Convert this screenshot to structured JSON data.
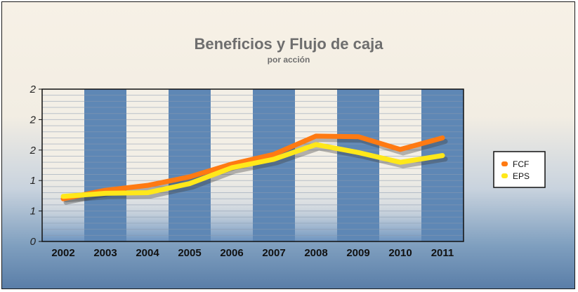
{
  "chart_data": {
    "type": "line",
    "title": "Beneficios y Flujo de caja",
    "subtitle": "por acción",
    "xlabel": "",
    "ylabel": "",
    "categories": [
      "2002",
      "2003",
      "2004",
      "2005",
      "2006",
      "2007",
      "2008",
      "2009",
      "2010",
      "2011"
    ],
    "ylim": [
      0,
      2.5
    ],
    "yticks": [
      0,
      0.5,
      1,
      1.5,
      2,
      2.5
    ],
    "ytick_labels": [
      "0",
      "1",
      "1",
      "2",
      "2",
      "2"
    ],
    "series": [
      {
        "name": "FCF",
        "color": "#ff7a12",
        "values": [
          0.7,
          0.84,
          0.92,
          1.06,
          1.27,
          1.43,
          1.73,
          1.72,
          1.51,
          1.7
        ]
      },
      {
        "name": "EPS",
        "color": "#ffe81a",
        "values": [
          0.74,
          0.79,
          0.8,
          0.95,
          1.21,
          1.35,
          1.59,
          1.46,
          1.3,
          1.41
        ]
      }
    ],
    "legend_position": "right",
    "grid": true,
    "background_stripe_colors": [
      "#f3efe6",
      "#5e87b5"
    ]
  }
}
